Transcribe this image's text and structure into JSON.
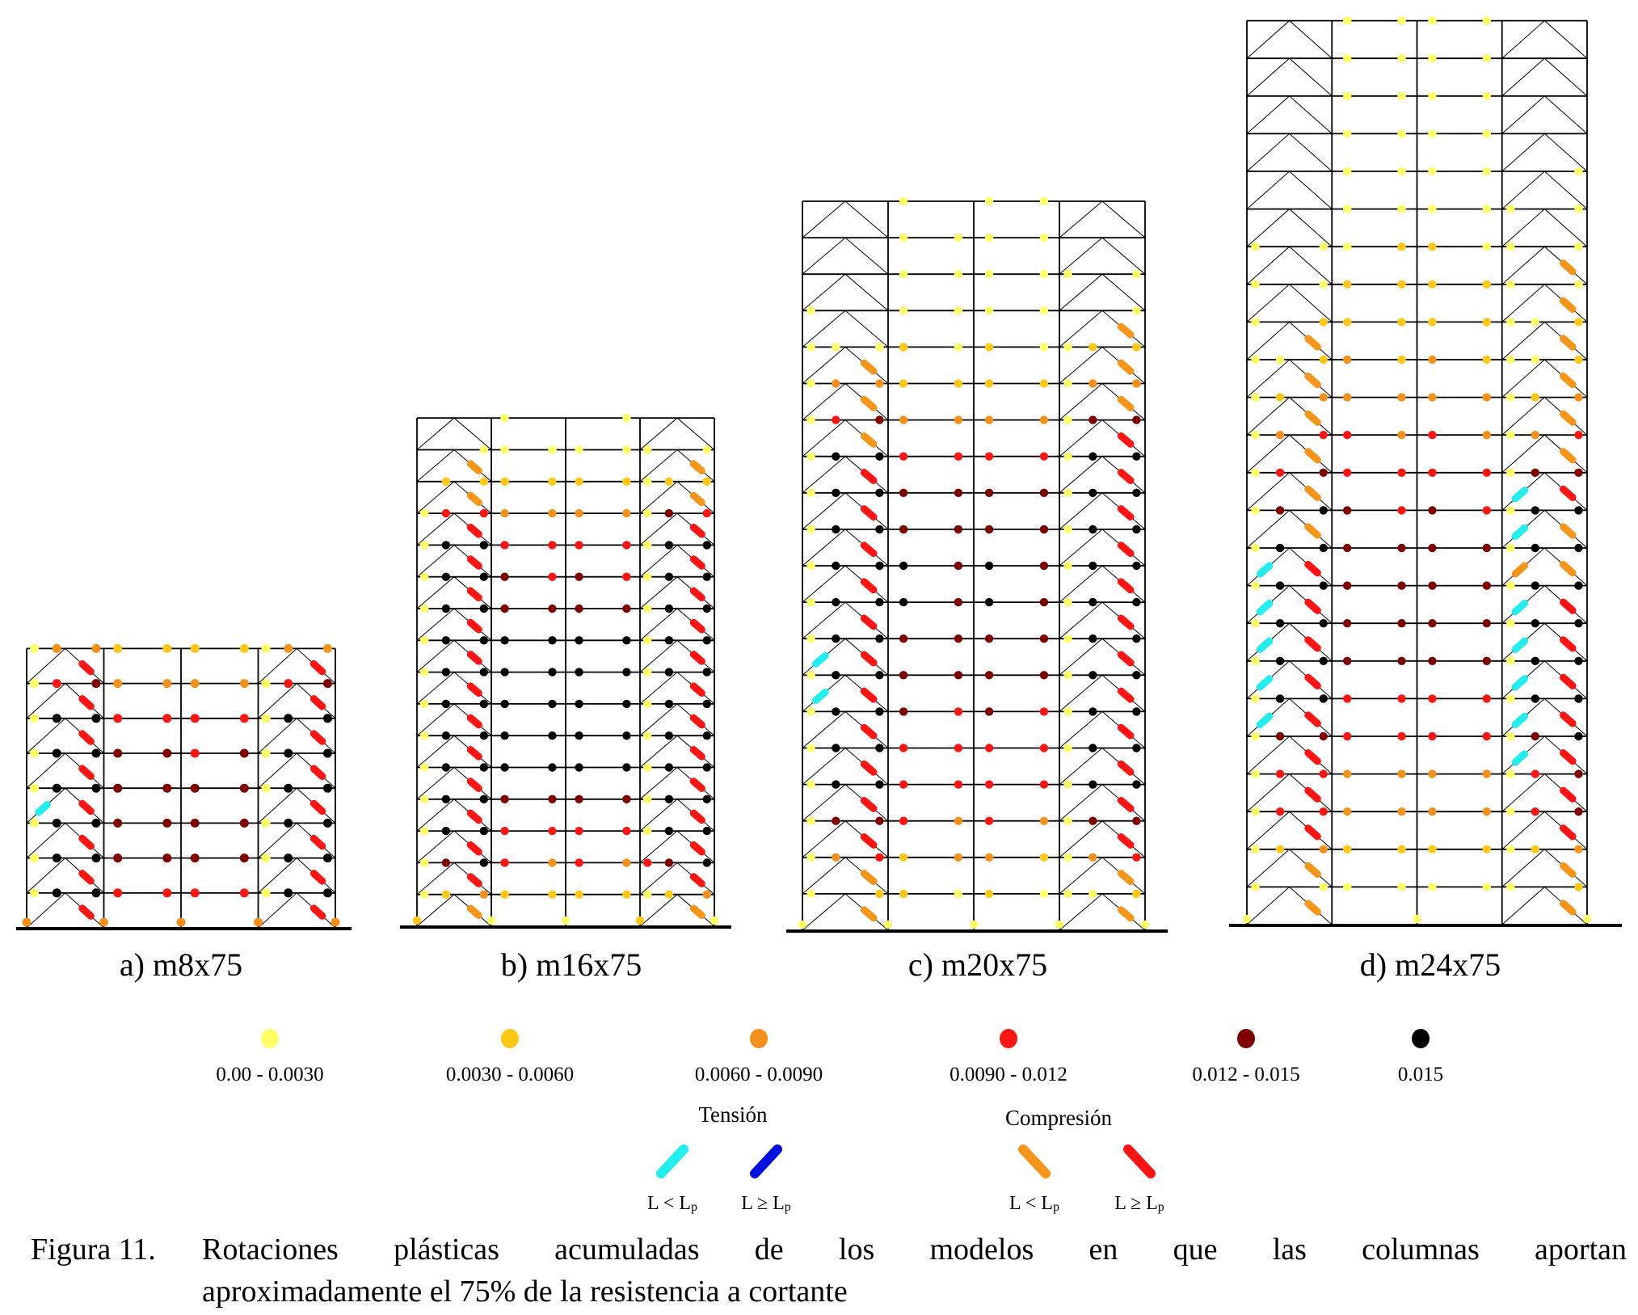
{
  "chart_data": {
    "type": "diagram",
    "title": "Figura 11. Rotaciones plásticas acumuladas de los modelos en que las columnas aportan aproximadamente el 75% de la resistencia a cortante",
    "hinge_legend": [
      {
        "code": "Y",
        "label": "0.00 - 0.0030",
        "color": "#ffff66"
      },
      {
        "code": "G",
        "label": "0.0030 - 0.0060",
        "color": "#ffc814"
      },
      {
        "code": "O",
        "label": "0.0060 - 0.0090",
        "color": "#f5901a"
      },
      {
        "code": "R",
        "label": "0.0090 - 0.012",
        "color": "#ff1414"
      },
      {
        "code": "D",
        "label": "0.012 - 0.015",
        "color": "#800000"
      },
      {
        "code": "K",
        "label": "0.015",
        "color": "#000000"
      }
    ],
    "brace_legend": {
      "tension_title": "Tensión",
      "compression_title": "Compresión",
      "items": [
        {
          "code": "c",
          "group": "Tensión",
          "label_main": "L < L",
          "label_sub": "p",
          "color": "#22eeee"
        },
        {
          "code": "b",
          "group": "Tensión",
          "label_main": "L ≥ L",
          "label_sub": "p",
          "color": "#0010e0"
        },
        {
          "code": "o",
          "group": "Compresión",
          "label_main": "L < L",
          "label_sub": "p",
          "color": "#f5961a"
        },
        {
          "code": "r",
          "group": "Compresión",
          "label_main": "L ≥ L",
          "label_sub": "p",
          "color": "#ff1414"
        }
      ]
    },
    "hinge_positions_per_floor": [
      "bay1-left",
      "bay1-mid",
      "bay1-right",
      "bay2-left",
      "bay2-right",
      "bay3-left",
      "bay3-right",
      "bay4-left",
      "bay4-mid",
      "bay4-right"
    ],
    "brace_positions_per_story": [
      "bay1-left-diagonal",
      "bay1-right-diagonal",
      "bay4-left-diagonal",
      "bay4-right-diagonal"
    ],
    "buildings": [
      {
        "id": "a",
        "label": "a) m8x75",
        "stories": 8,
        "floors_top_down": [
          "YOOGGGGYOO",
          "YRDOOOOYRD",
          "YKKRRRRYKK",
          "YKKDDRDYKK",
          "YKKDDDDYKK",
          "YKKDDDDYKK",
          "YKKDDDDYKK",
          "YKKRRRRYKK"
        ],
        "base_hinges": "OOOOO",
        "braces_top_down": [
          "-r-r",
          "-r-r",
          "-r-r",
          "-r-r",
          "cr-r",
          "-r-r",
          "-r-r",
          "-r-r"
        ]
      },
      {
        "id": "b",
        "label": "b) m16x75",
        "stories": 16,
        "floors_top_down": [
          "---Y--Y---",
          "--YYYYYY-Y",
          "-GGGGGGYGG",
          "YRROOOOYDR",
          "YKKRRRRYKK",
          "YKKDRDRYKK",
          "YKKDDDDYKK",
          "YKKKKKKYKK",
          "YKKKKKKYKK",
          "YKKKKKKYKK",
          "YKKKKKKYKK",
          "YKKKKKKYKK",
          "YKKDDDDYKK",
          "YKKRRRRYKK",
          "YDKRORORDK",
          "YGOGGGGYGO"
        ],
        "base_hinges": "GYYGY",
        "braces_top_down": [
          "----",
          "-o-o",
          "-o-o",
          "-r-r",
          "-r-r",
          "-r-r",
          "-r-r",
          "-r-r",
          "-r-r",
          "-r-r",
          "-r-r",
          "-r-r",
          "-r-r",
          "-r-r",
          "-r-r",
          "-o-o"
        ]
      },
      {
        "id": "c",
        "label": "c) m20x75",
        "stories": 20,
        "floors_top_down": [
          "---Y-YY---",
          "---YYYY---",
          "---YYYYY-Y",
          "Y--YYYY--Y",
          "YYYGYGYYGG",
          "YOOGGGGYOO",
          "YRDOOOOYDD",
          "YKKRRRRYKK",
          "YKKDDDDYKK",
          "YKKDDDDYKK",
          "YKKKDKDYKK",
          "YKKKDKDYKK",
          "YKKDDDDYKK",
          "YKKDDDDYKK",
          "YKKDRDRYKK",
          "YKKRRRRYKK",
          "YKKRRRRYKK",
          "YDDROROYDD",
          "YORGOOGYOR",
          "Y-GGYGYYYG"
        ],
        "base_hinges": "YYYYY",
        "braces_top_down": [
          "----",
          "----",
          "----",
          "---o",
          "-o-o",
          "-o-o",
          "-o-r",
          "-r-r",
          "-r-r",
          "-r-r",
          "-r-r",
          "-r-r",
          "cr-r",
          "cr-r",
          "-r-r",
          "-r-r",
          "-r-r",
          "-r-r",
          "-o-o",
          "-o-o"
        ]
      },
      {
        "id": "d",
        "label": "d) m24x75",
        "stories": 24,
        "floors_top_down": [
          "---YYYY---",
          "---YYYY---",
          "---YYYY---",
          "---YYYY---",
          "---YYYY--Y",
          "---YYYYY-Y",
          "Y-YYGGYY-Y",
          "Y-YGGGGY-Y",
          "Y-GGGGGYYG",
          "YYGOGOGYYG",
          "YGOOOOOYGO",
          "YORROROYOR",
          "YRDRRRRYDD",
          "YDKDRDRYKK",
          "YKKDDDDYKK",
          "YKKDDDDYKK",
          "YKKDDDDYKK",
          "YKKDDDDYKK",
          "YKKRRRRYKK",
          "YDDRRRRYDK",
          "YRROOOOYRD",
          "YRROOOOYRD",
          "YGOGGGGYGO",
          "Y-YYYYYY-G"
        ],
        "base_hinges": "Y-Y-Y",
        "braces_top_down": [
          "----",
          "----",
          "----",
          "----",
          "----",
          "----",
          "---o",
          "---o",
          "-o-o",
          "-o-o",
          "-o-o",
          "-o-o",
          "-ocr",
          "-oco",
          "croo",
          "crcr",
          "crcr",
          "crcr",
          "crcr",
          "-rcr",
          "-r-r",
          "-r-r",
          "-o-o",
          "-o-o"
        ]
      }
    ]
  },
  "legend": {
    "tension_title": "Tensión",
    "compression_title": "Compresión"
  },
  "caption": {
    "number": "Figura 11.",
    "line1": "Rotaciones plásticas acumuladas de los modelos en que las columnas aportan",
    "line2": "aproximadamente el 75% de la resistencia a cortante"
  }
}
